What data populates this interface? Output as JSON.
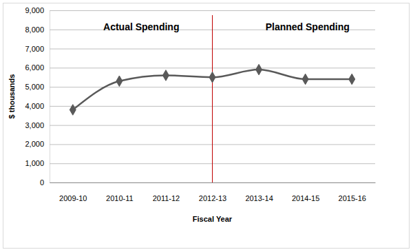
{
  "chart_data": {
    "type": "line",
    "annotations": [
      "Actual Spending",
      "Planned Spending"
    ],
    "xlabel": "Fiscal Year",
    "ylabel": "$ thousands",
    "categories": [
      "2009-10",
      "2010-11",
      "2011-12",
      "2012-13",
      "2013-14",
      "2014-15",
      "2015-16"
    ],
    "values": [
      3800,
      5300,
      5600,
      5500,
      5900,
      5400,
      5400
    ],
    "color": "#595959",
    "marker": "diamond",
    "ylim": [
      0,
      9000
    ],
    "yticks": [
      0,
      {
        "value": 1000,
        "label": "1,000"
      },
      {
        "value": 2000,
        "label": "2,000"
      },
      {
        "value": 3000,
        "label": "3,000"
      },
      {
        "value": 4000,
        "label": "4,000"
      },
      {
        "value": 5000,
        "label": "5,000"
      },
      {
        "value": 6000,
        "label": "6,000"
      },
      {
        "value": 7000,
        "label": "7,000"
      },
      {
        "value": 8000,
        "label": "8,000"
      },
      {
        "value": 9000,
        "label": "9,000"
      }
    ],
    "grid": true,
    "divider": {
      "category": "2012-13",
      "color": "#c00000"
    }
  }
}
